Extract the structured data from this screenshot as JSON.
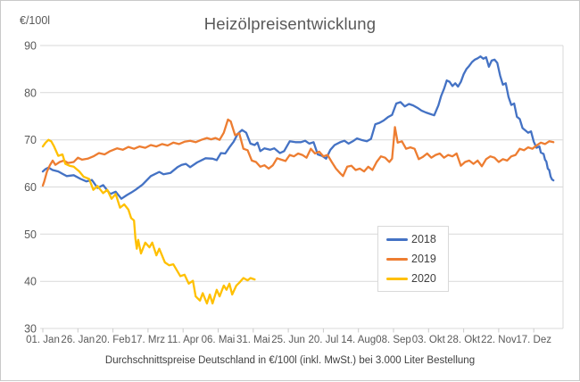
{
  "title": "Heizölpreisentwicklung",
  "footnote": "Durchschnittspreise Deutschland in €/100l (inkl. MwSt.) bei 3.000 Liter Bestellung",
  "colors": {
    "series_2018": "#4472C4",
    "series_2019": "#ED7D31",
    "series_2020": "#FFC000",
    "gridline": "#d9d9d9",
    "axis_text": "#595959",
    "title_text": "#595959",
    "footnote_text": "#404040"
  },
  "chart_data": {
    "type": "line",
    "title": "Heizölpreisentwicklung",
    "xlabel": "",
    "ylabel": "€/100l",
    "ylim": [
      30,
      90
    ],
    "y_ticks": [
      90,
      80,
      70,
      60,
      50,
      40,
      30
    ],
    "x_ticks": [
      {
        "day": 1,
        "label": "01. Jan"
      },
      {
        "day": 26,
        "label": "26. Jan"
      },
      {
        "day": 51,
        "label": "20. Feb"
      },
      {
        "day": 76,
        "label": "17. Mrz"
      },
      {
        "day": 101,
        "label": "11. Apr"
      },
      {
        "day": 126,
        "label": "06. Mai"
      },
      {
        "day": 151,
        "label": "31. Mai"
      },
      {
        "day": 176,
        "label": "25. Jun"
      },
      {
        "day": 201,
        "label": "20. Jul"
      },
      {
        "day": 226,
        "label": "14. Aug"
      },
      {
        "day": 251,
        "label": "08. Sep"
      },
      {
        "day": 276,
        "label": "03. Okt"
      },
      {
        "day": 301,
        "label": "28. Okt"
      },
      {
        "day": 326,
        "label": "22. Nov"
      },
      {
        "day": 351,
        "label": "17. Dez"
      }
    ],
    "x_range_days": [
      1,
      365
    ],
    "grid": "horizontal",
    "legend_position": "inner-right",
    "series": [
      {
        "name": "2018",
        "color": "#4472C4",
        "points": [
          [
            1,
            63.3
          ],
          [
            3,
            63.8
          ],
          [
            5,
            64.1
          ],
          [
            8,
            63.6
          ],
          [
            12,
            63.3
          ],
          [
            15,
            62.8
          ],
          [
            18,
            62.3
          ],
          [
            23,
            62.5
          ],
          [
            28,
            61.7
          ],
          [
            32,
            61.2
          ],
          [
            36,
            61.5
          ],
          [
            40,
            59.8
          ],
          [
            44,
            60.4
          ],
          [
            49,
            58.5
          ],
          [
            53,
            59.0
          ],
          [
            57,
            57.5
          ],
          [
            61,
            58.3
          ],
          [
            64,
            58.8
          ],
          [
            67,
            59.4
          ],
          [
            72,
            60.5
          ],
          [
            78,
            62.3
          ],
          [
            84,
            63.2
          ],
          [
            87,
            62.7
          ],
          [
            92,
            63.0
          ],
          [
            97,
            64.2
          ],
          [
            100,
            64.7
          ],
          [
            103,
            64.9
          ],
          [
            106,
            64.2
          ],
          [
            111,
            65.2
          ],
          [
            117,
            66.1
          ],
          [
            122,
            66.0
          ],
          [
            125,
            65.7
          ],
          [
            128,
            67.2
          ],
          [
            131,
            67.1
          ],
          [
            134,
            68.4
          ],
          [
            137,
            69.6
          ],
          [
            140,
            71.3
          ],
          [
            143,
            72.1
          ],
          [
            146,
            71.5
          ],
          [
            149,
            69.2
          ],
          [
            152,
            68.9
          ],
          [
            154,
            69.4
          ],
          [
            156,
            67.6
          ],
          [
            159,
            68.2
          ],
          [
            163,
            67.9
          ],
          [
            166,
            68.2
          ],
          [
            170,
            67.2
          ],
          [
            173,
            67.6
          ],
          [
            177,
            69.7
          ],
          [
            181,
            69.5
          ],
          [
            185,
            69.5
          ],
          [
            188,
            69.8
          ],
          [
            191,
            69.2
          ],
          [
            194,
            69.5
          ],
          [
            197,
            66.9
          ],
          [
            200,
            66.6
          ],
          [
            203,
            66.0
          ],
          [
            206,
            67.9
          ],
          [
            209,
            68.9
          ],
          [
            213,
            69.5
          ],
          [
            216,
            69.8
          ],
          [
            219,
            69.2
          ],
          [
            222,
            69.7
          ],
          [
            225,
            70.3
          ],
          [
            228,
            70.0
          ],
          [
            232,
            69.7
          ],
          [
            235,
            70.2
          ],
          [
            238,
            73.3
          ],
          [
            241,
            73.6
          ],
          [
            244,
            74.1
          ],
          [
            247,
            74.8
          ],
          [
            250,
            75.3
          ],
          [
            253,
            77.7
          ],
          [
            256,
            78.0
          ],
          [
            259,
            77.1
          ],
          [
            262,
            77.6
          ],
          [
            265,
            77.3
          ],
          [
            268,
            76.8
          ],
          [
            271,
            76.2
          ],
          [
            274,
            75.8
          ],
          [
            277,
            75.5
          ],
          [
            280,
            75.2
          ],
          [
            283,
            77.3
          ],
          [
            285,
            79.3
          ],
          [
            287,
            80.8
          ],
          [
            289,
            82.6
          ],
          [
            291,
            82.3
          ],
          [
            293,
            81.4
          ],
          [
            295,
            82.0
          ],
          [
            297,
            81.3
          ],
          [
            299,
            82.3
          ],
          [
            301,
            83.9
          ],
          [
            303,
            85.0
          ],
          [
            305,
            85.7
          ],
          [
            307,
            86.5
          ],
          [
            309,
            87.0
          ],
          [
            311,
            87.3
          ],
          [
            313,
            87.7
          ],
          [
            315,
            87.2
          ],
          [
            317,
            87.5
          ],
          [
            319,
            85.5
          ],
          [
            321,
            86.8
          ],
          [
            323,
            87.0
          ],
          [
            325,
            86.3
          ],
          [
            327,
            83.6
          ],
          [
            329,
            81.7
          ],
          [
            331,
            82.0
          ],
          [
            333,
            79.1
          ],
          [
            335,
            77.4
          ],
          [
            337,
            77.7
          ],
          [
            339,
            74.9
          ],
          [
            341,
            74.4
          ],
          [
            343,
            72.5
          ],
          [
            345,
            72.0
          ],
          [
            347,
            71.5
          ],
          [
            349,
            71.8
          ],
          [
            351,
            69.6
          ],
          [
            353,
            68.3
          ],
          [
            355,
            68.6
          ],
          [
            356,
            67.3
          ],
          [
            358,
            67.0
          ],
          [
            359,
            65.8
          ],
          [
            360,
            65.4
          ],
          [
            361,
            63.9
          ],
          [
            362,
            63.6
          ],
          [
            363,
            62.2
          ],
          [
            364,
            61.6
          ],
          [
            365,
            61.4
          ]
        ]
      },
      {
        "name": "2019",
        "color": "#ED7D31",
        "points": [
          [
            1,
            60.3
          ],
          [
            2,
            61.2
          ],
          [
            4,
            63.3
          ],
          [
            6,
            64.6
          ],
          [
            8,
            65.6
          ],
          [
            10,
            64.7
          ],
          [
            13,
            65.3
          ],
          [
            16,
            65.6
          ],
          [
            19,
            65.1
          ],
          [
            23,
            65.3
          ],
          [
            26,
            66.2
          ],
          [
            29,
            65.8
          ],
          [
            33,
            66.0
          ],
          [
            37,
            66.5
          ],
          [
            41,
            67.2
          ],
          [
            45,
            66.9
          ],
          [
            49,
            67.6
          ],
          [
            54,
            68.2
          ],
          [
            58,
            67.9
          ],
          [
            62,
            68.5
          ],
          [
            66,
            68.1
          ],
          [
            70,
            68.6
          ],
          [
            74,
            68.3
          ],
          [
            78,
            68.9
          ],
          [
            82,
            68.6
          ],
          [
            86,
            69.1
          ],
          [
            90,
            68.8
          ],
          [
            94,
            69.4
          ],
          [
            98,
            69.1
          ],
          [
            102,
            69.6
          ],
          [
            106,
            69.8
          ],
          [
            110,
            69.5
          ],
          [
            114,
            70.0
          ],
          [
            118,
            70.4
          ],
          [
            121,
            70.1
          ],
          [
            124,
            70.4
          ],
          [
            127,
            70.0
          ],
          [
            130,
            71.5
          ],
          [
            133,
            74.3
          ],
          [
            135,
            73.9
          ],
          [
            138,
            71.0
          ],
          [
            141,
            71.4
          ],
          [
            144,
            68.1
          ],
          [
            147,
            67.8
          ],
          [
            150,
            65.6
          ],
          [
            153,
            65.3
          ],
          [
            156,
            64.3
          ],
          [
            159,
            64.6
          ],
          [
            162,
            63.9
          ],
          [
            165,
            64.6
          ],
          [
            168,
            66.1
          ],
          [
            171,
            65.8
          ],
          [
            174,
            65.5
          ],
          [
            177,
            66.8
          ],
          [
            180,
            66.5
          ],
          [
            183,
            67.1
          ],
          [
            186,
            66.8
          ],
          [
            189,
            66.2
          ],
          [
            192,
            68.1
          ],
          [
            195,
            67.1
          ],
          [
            198,
            67.5
          ],
          [
            201,
            66.5
          ],
          [
            204,
            66.8
          ],
          [
            207,
            65.3
          ],
          [
            210,
            63.9
          ],
          [
            213,
            62.9
          ],
          [
            215,
            62.3
          ],
          [
            218,
            64.3
          ],
          [
            221,
            64.5
          ],
          [
            224,
            63.6
          ],
          [
            227,
            63.9
          ],
          [
            230,
            63.3
          ],
          [
            233,
            64.3
          ],
          [
            236,
            63.6
          ],
          [
            239,
            65.3
          ],
          [
            242,
            66.5
          ],
          [
            245,
            66.2
          ],
          [
            248,
            65.3
          ],
          [
            250,
            66.0
          ],
          [
            252,
            72.7
          ],
          [
            254,
            69.4
          ],
          [
            257,
            69.7
          ],
          [
            260,
            68.1
          ],
          [
            263,
            68.4
          ],
          [
            266,
            68.1
          ],
          [
            269,
            65.9
          ],
          [
            272,
            66.4
          ],
          [
            275,
            67.1
          ],
          [
            278,
            66.2
          ],
          [
            281,
            66.8
          ],
          [
            284,
            67.1
          ],
          [
            287,
            66.2
          ],
          [
            290,
            66.8
          ],
          [
            293,
            66.5
          ],
          [
            296,
            67.1
          ],
          [
            299,
            64.5
          ],
          [
            302,
            65.3
          ],
          [
            305,
            65.6
          ],
          [
            308,
            64.9
          ],
          [
            311,
            65.6
          ],
          [
            314,
            64.4
          ],
          [
            317,
            65.9
          ],
          [
            320,
            66.5
          ],
          [
            323,
            66.2
          ],
          [
            326,
            65.3
          ],
          [
            329,
            65.9
          ],
          [
            332,
            65.6
          ],
          [
            335,
            66.5
          ],
          [
            338,
            66.8
          ],
          [
            341,
            68.1
          ],
          [
            344,
            67.8
          ],
          [
            347,
            68.4
          ],
          [
            350,
            68.1
          ],
          [
            353,
            68.8
          ],
          [
            356,
            69.4
          ],
          [
            359,
            69.1
          ],
          [
            362,
            69.7
          ],
          [
            365,
            69.5
          ]
        ]
      },
      {
        "name": "2020",
        "color": "#FFC000",
        "points": [
          [
            1,
            68.6
          ],
          [
            3,
            69.4
          ],
          [
            5,
            70.0
          ],
          [
            7,
            69.7
          ],
          [
            9,
            68.6
          ],
          [
            12,
            66.6
          ],
          [
            15,
            66.9
          ],
          [
            17,
            64.9
          ],
          [
            20,
            64.5
          ],
          [
            23,
            64.3
          ],
          [
            27,
            63.3
          ],
          [
            30,
            62.2
          ],
          [
            34,
            61.7
          ],
          [
            37,
            59.4
          ],
          [
            40,
            60.2
          ],
          [
            44,
            58.7
          ],
          [
            47,
            59.4
          ],
          [
            50,
            57.5
          ],
          [
            53,
            58.5
          ],
          [
            56,
            55.6
          ],
          [
            59,
            56.3
          ],
          [
            62,
            55.2
          ],
          [
            64,
            53.4
          ],
          [
            66,
            52.9
          ],
          [
            67,
            49.0
          ],
          [
            68,
            46.9
          ],
          [
            69,
            48.8
          ],
          [
            71,
            45.9
          ],
          [
            74,
            48.2
          ],
          [
            77,
            47.2
          ],
          [
            79,
            48.2
          ],
          [
            82,
            45.5
          ],
          [
            84,
            46.9
          ],
          [
            88,
            44.0
          ],
          [
            91,
            43.4
          ],
          [
            94,
            43.6
          ],
          [
            99,
            41.1
          ],
          [
            102,
            41.4
          ],
          [
            105,
            39.5
          ],
          [
            108,
            40.1
          ],
          [
            110,
            36.8
          ],
          [
            113,
            35.9
          ],
          [
            115,
            37.5
          ],
          [
            118,
            35.3
          ],
          [
            120,
            37.2
          ],
          [
            122,
            35.3
          ],
          [
            125,
            38.2
          ],
          [
            127,
            36.8
          ],
          [
            130,
            39.1
          ],
          [
            132,
            38.2
          ],
          [
            134,
            39.5
          ],
          [
            136,
            37.2
          ],
          [
            139,
            39.1
          ],
          [
            141,
            39.7
          ],
          [
            144,
            40.7
          ],
          [
            147,
            40.2
          ],
          [
            149,
            40.7
          ],
          [
            152,
            40.4
          ]
        ]
      }
    ],
    "footnote": "Durchschnittspreise Deutschland in €/100l (inkl. MwSt.) bei 3.000 Liter Bestellung"
  }
}
